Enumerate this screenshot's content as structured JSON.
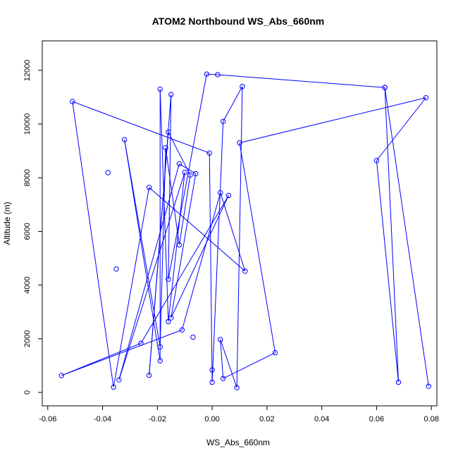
{
  "chart_data": {
    "type": "line",
    "title": "ATOM2 Northbound WS_Abs_660nm",
    "xlabel": "WS_Abs_660nm",
    "ylabel": "Altitude (m)",
    "xlim": [
      -0.062,
      0.082
    ],
    "ylim": [
      -500,
      13100
    ],
    "xticks": [
      -0.06,
      -0.04,
      -0.02,
      0.0,
      0.02,
      0.04,
      0.06,
      0.08
    ],
    "xtick_labels": [
      "-0.06",
      "-0.04",
      "-0.02",
      "0.00",
      "0.02",
      "0.04",
      "0.06",
      "0.08"
    ],
    "yticks": [
      0,
      2000,
      4000,
      6000,
      8000,
      10000,
      12000
    ],
    "ytick_labels": [
      "0",
      "2000",
      "4000",
      "6000",
      "8000",
      "10000",
      "12000"
    ],
    "grid": false,
    "legend": "none",
    "series": [
      {
        "color": "#0000ff",
        "marker": "open-circle",
        "points": [
          {
            "x": 0.079,
            "y": 230
          },
          {
            "x": 0.063,
            "y": 11360
          },
          {
            "x": 0.002,
            "y": 11840
          },
          {
            "x": -0.002,
            "y": 11860
          },
          {
            "x": -0.016,
            "y": 4220
          },
          {
            "x": -0.015,
            "y": 11100
          },
          {
            "x": -0.023,
            "y": 640
          },
          {
            "x": -0.016,
            "y": 9700
          },
          {
            "x": -0.008,
            "y": 8100
          },
          {
            "x": -0.012,
            "y": 5500
          },
          {
            "x": -0.017,
            "y": 9120
          },
          {
            "x": -0.019,
            "y": 1700
          },
          {
            "x": -0.032,
            "y": 9420
          },
          {
            "x": -0.019,
            "y": 1180
          },
          {
            "x": -0.019,
            "y": 11300
          },
          {
            "x": -0.016,
            "y": 2640
          },
          {
            "x": -0.01,
            "y": 8200
          },
          {
            "x": -0.034,
            "y": 470
          },
          {
            "x": -0.012,
            "y": 8520
          },
          {
            "x": -0.006,
            "y": 8150
          },
          {
            "x": -0.015,
            "y": 2780
          },
          {
            "x": 0.006,
            "y": 7340
          },
          {
            "x": -0.026,
            "y": 1830
          },
          {
            "x": -0.055,
            "y": 630
          },
          {
            "x": -0.011,
            "y": 2330
          },
          {
            "x": 0.003,
            "y": 7440
          },
          {
            "x": 0.012,
            "y": 4520
          },
          {
            "x": -0.023,
            "y": 7640
          },
          {
            "x": -0.036,
            "y": 200
          },
          {
            "x": -0.051,
            "y": 10840
          },
          {
            "x": -0.001,
            "y": 8920
          },
          {
            "x": 0.0,
            "y": 380
          },
          {
            "x": 0.004,
            "y": 10100
          },
          {
            "x": 0.011,
            "y": 11400
          },
          {
            "x": 0.009,
            "y": 180
          },
          {
            "x": 0.003,
            "y": 1970
          },
          {
            "x": 0.004,
            "y": 520
          },
          {
            "x": 0.023,
            "y": 1480
          },
          {
            "x": 0.01,
            "y": 9300
          },
          {
            "x": 0.078,
            "y": 10980
          },
          {
            "x": 0.06,
            "y": 8640
          },
          {
            "x": 0.068,
            "y": 380
          },
          {
            "x": 0.063,
            "y": 11360
          }
        ]
      }
    ],
    "extra_points": [
      {
        "x": -0.038,
        "y": 8190
      },
      {
        "x": -0.035,
        "y": 4600
      },
      {
        "x": -0.007,
        "y": 2060
      },
      {
        "x": 0.0,
        "y": 840
      }
    ]
  }
}
